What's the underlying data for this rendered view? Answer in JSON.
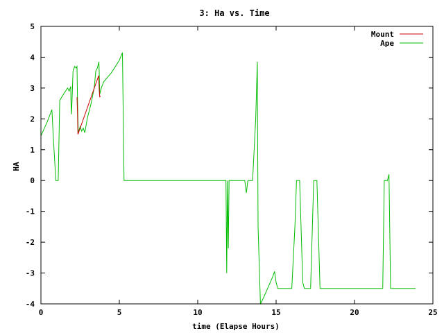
{
  "chart_data": {
    "type": "line",
    "title": "3: Ha vs. Time",
    "xlabel": "time (Elapse Hours)",
    "ylabel": "HA",
    "xlim": [
      0,
      25
    ],
    "ylim": [
      -4,
      5
    ],
    "xticks": [
      "0",
      "5",
      "10",
      "15",
      "20",
      "25"
    ],
    "yticks": [
      "-4",
      "-3",
      "-2",
      "-1",
      "0",
      "1",
      "2",
      "3",
      "4",
      "5"
    ],
    "grid": false,
    "legend": "top-right",
    "series": [
      {
        "name": "Mount",
        "color": "#cc0000",
        "points": [
          [
            2.3,
            2.7
          ],
          [
            2.33,
            2.2
          ],
          [
            2.36,
            1.5
          ],
          [
            2.4,
            1.55
          ],
          [
            3.68,
            3.4
          ],
          [
            3.72,
            2.9
          ],
          [
            3.75,
            2.7
          ],
          [
            3.78,
            2.75
          ]
        ]
      },
      {
        "name": "Ape",
        "color": "#00bb00",
        "points": [
          [
            0.0,
            1.45
          ],
          [
            0.4,
            1.9
          ],
          [
            0.7,
            2.3
          ],
          [
            0.8,
            1.3
          ],
          [
            0.95,
            0.0
          ],
          [
            1.1,
            0.0
          ],
          [
            1.2,
            2.6
          ],
          [
            1.5,
            2.85
          ],
          [
            1.7,
            3.0
          ],
          [
            1.8,
            2.9
          ],
          [
            1.9,
            3.05
          ],
          [
            1.92,
            2.5
          ],
          [
            1.95,
            2.15
          ],
          [
            2.05,
            3.55
          ],
          [
            2.15,
            3.7
          ],
          [
            2.25,
            3.65
          ],
          [
            2.3,
            3.7
          ],
          [
            2.33,
            2.6
          ],
          [
            2.38,
            1.55
          ],
          [
            2.5,
            1.75
          ],
          [
            2.6,
            1.6
          ],
          [
            2.7,
            1.7
          ],
          [
            2.8,
            1.55
          ],
          [
            2.95,
            2.0
          ],
          [
            3.0,
            2.1
          ],
          [
            3.2,
            2.5
          ],
          [
            3.4,
            3.0
          ],
          [
            3.5,
            3.55
          ],
          [
            3.6,
            3.65
          ],
          [
            3.7,
            3.85
          ],
          [
            3.75,
            2.8
          ],
          [
            3.85,
            3.0
          ],
          [
            4.0,
            3.2
          ],
          [
            4.5,
            3.5
          ],
          [
            5.0,
            3.9
          ],
          [
            5.2,
            4.15
          ],
          [
            5.3,
            0.0
          ],
          [
            11.8,
            0.0
          ],
          [
            11.85,
            -3.0
          ],
          [
            11.9,
            0.0
          ],
          [
            11.95,
            -2.2
          ],
          [
            12.0,
            0.0
          ],
          [
            13.0,
            0.0
          ],
          [
            13.1,
            -0.4
          ],
          [
            13.2,
            0.0
          ],
          [
            13.5,
            0.0
          ],
          [
            13.7,
            2.0
          ],
          [
            13.8,
            3.85
          ],
          [
            13.85,
            -1.5
          ],
          [
            14.0,
            -4.0
          ],
          [
            14.2,
            -3.8
          ],
          [
            14.8,
            -3.1
          ],
          [
            14.9,
            -2.95
          ],
          [
            15.0,
            -3.3
          ],
          [
            15.1,
            -3.5
          ],
          [
            16.0,
            -3.5
          ],
          [
            16.2,
            -1.5
          ],
          [
            16.3,
            0.0
          ],
          [
            16.5,
            0.0
          ],
          [
            16.7,
            -3.3
          ],
          [
            16.8,
            -3.5
          ],
          [
            17.2,
            -3.5
          ],
          [
            17.4,
            0.0
          ],
          [
            17.6,
            0.0
          ],
          [
            17.8,
            -3.5
          ],
          [
            21.8,
            -3.5
          ],
          [
            21.9,
            0.0
          ],
          [
            22.1,
            0.0
          ],
          [
            22.2,
            0.2
          ],
          [
            22.3,
            -3.5
          ],
          [
            23.9,
            -3.5
          ]
        ]
      }
    ]
  }
}
